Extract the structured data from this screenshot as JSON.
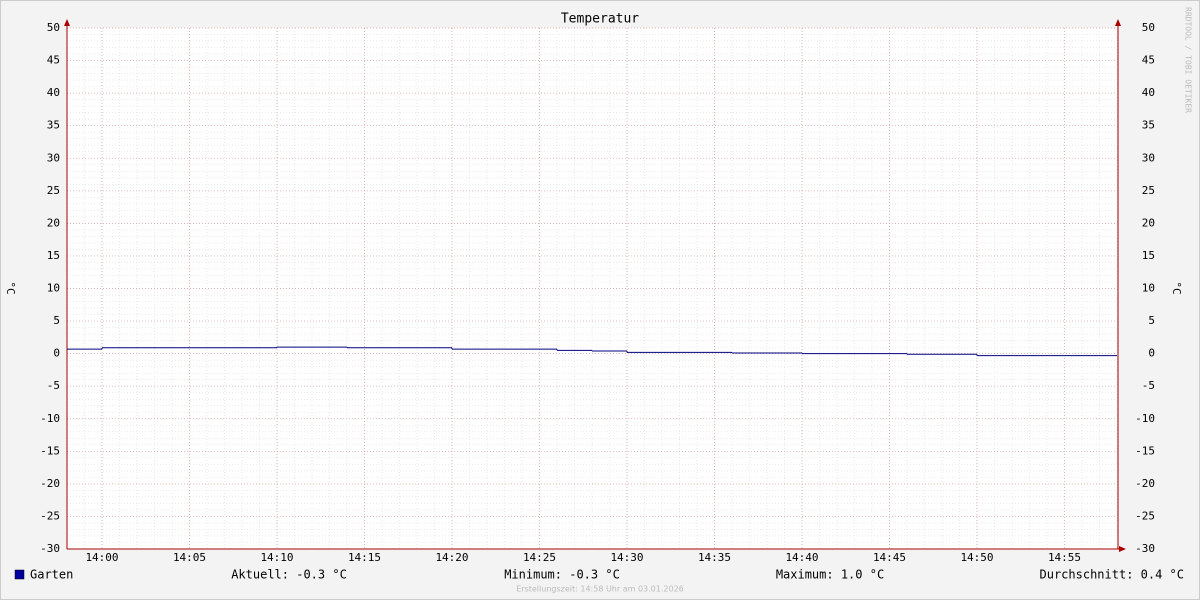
{
  "chart_data": {
    "type": "step",
    "title": "Temperatur",
    "ylabel": "°C",
    "x": [
      838,
      840,
      850,
      854,
      860,
      866,
      868,
      870,
      876,
      880,
      886,
      890
    ],
    "series": [
      {
        "name": "Garten",
        "color": "#000080",
        "values": [
          0.7,
          0.9,
          1.0,
          0.9,
          0.7,
          0.5,
          0.4,
          0.2,
          0.1,
          0.0,
          -0.1,
          -0.3
        ]
      }
    ],
    "legend_color": "#0000a0",
    "xlim": [
      838,
      898
    ],
    "xticks": [
      {
        "value": 840,
        "label": "14:00"
      },
      {
        "value": 845,
        "label": "14:05"
      },
      {
        "value": 850,
        "label": "14:10"
      },
      {
        "value": 855,
        "label": "14:15"
      },
      {
        "value": 860,
        "label": "14:20"
      },
      {
        "value": 865,
        "label": "14:25"
      },
      {
        "value": 870,
        "label": "14:30"
      },
      {
        "value": 875,
        "label": "14:35"
      },
      {
        "value": 880,
        "label": "14:40"
      },
      {
        "value": 885,
        "label": "14:45"
      },
      {
        "value": 890,
        "label": "14:50"
      },
      {
        "value": 895,
        "label": "14:55"
      }
    ],
    "ylim": [
      -30,
      50
    ],
    "yticks": [
      -30,
      -25,
      -20,
      -15,
      -10,
      -5,
      0,
      5,
      10,
      15,
      20,
      25,
      30,
      35,
      40,
      45,
      50
    ],
    "grid": true,
    "legend_stats": [
      "Aktuell: -0.3 °C",
      "Minimum: -0.3 °C",
      "Maximum: 1.0 °C",
      "Durchschnitt: 0.4 °C"
    ],
    "footer": "Erstellungszeit: 14:58 Uhr am 03.01.2026",
    "watermark": "RRDTOOL / TOBI OETIKER"
  }
}
